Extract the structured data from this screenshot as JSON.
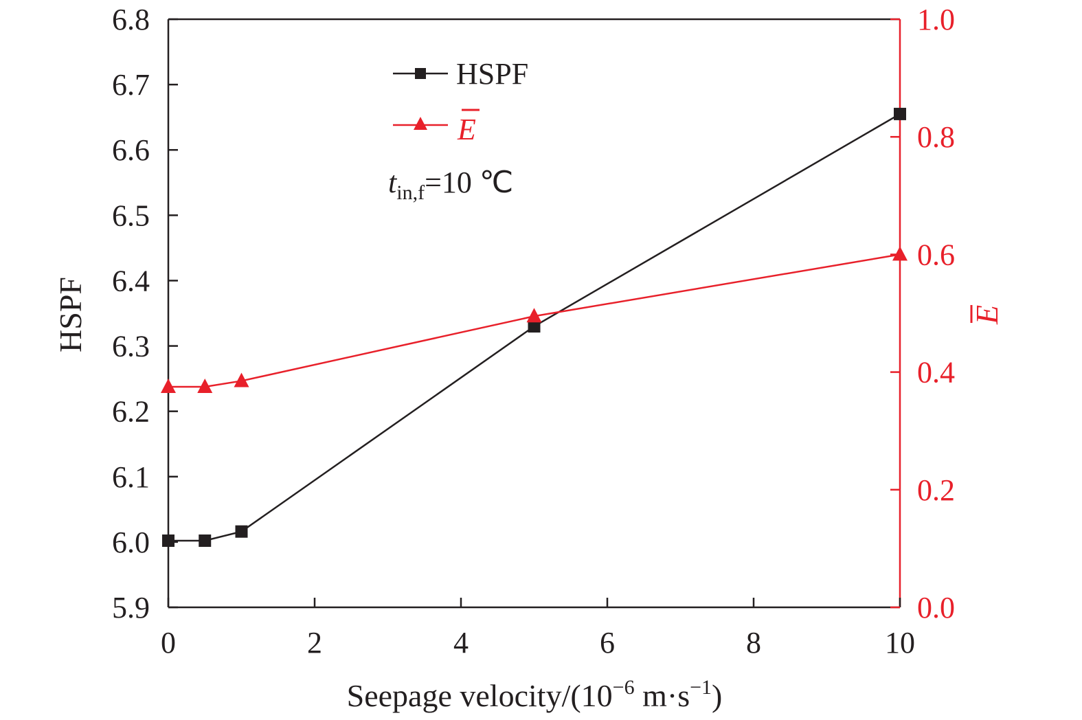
{
  "chart_data": {
    "type": "line",
    "x": [
      0,
      0.5,
      1,
      5,
      10
    ],
    "xlim": [
      0,
      10
    ],
    "x_ticks": [
      "0",
      "2",
      "4",
      "6",
      "8",
      "10"
    ],
    "xlabel": "Seepage velocity/(10",
    "xlabel_exp1": "−6",
    "xlabel_mid": " m·s",
    "xlabel_exp2": "−1",
    "xlabel_end": ")",
    "left_axis": {
      "label": "HSPF",
      "ylim": [
        5.9,
        6.8
      ],
      "ticks": [
        "5.9",
        "6.0",
        "6.1",
        "6.2",
        "6.3",
        "6.4",
        "6.5",
        "6.6",
        "6.7",
        "6.8"
      ],
      "color": "#231f20"
    },
    "right_axis": {
      "label": "E",
      "ylim": [
        0.0,
        1.0
      ],
      "ticks": [
        "0.0",
        "0.2",
        "0.4",
        "0.6",
        "0.8",
        "1.0"
      ],
      "color": "#e8202a"
    },
    "series": [
      {
        "name": "HSPF",
        "axis": "left",
        "marker": "square",
        "color": "#231f20",
        "values": [
          6.002,
          6.002,
          6.016,
          6.33,
          6.655
        ]
      },
      {
        "name": "E",
        "axis": "right",
        "marker": "triangle",
        "color": "#e8202a",
        "values": [
          0.375,
          0.375,
          0.385,
          0.495,
          0.6
        ]
      }
    ],
    "annotation": {
      "var": "t",
      "sub": "in,f",
      "text": "=10 ℃"
    },
    "legend_position": "top-left",
    "grid": false
  }
}
